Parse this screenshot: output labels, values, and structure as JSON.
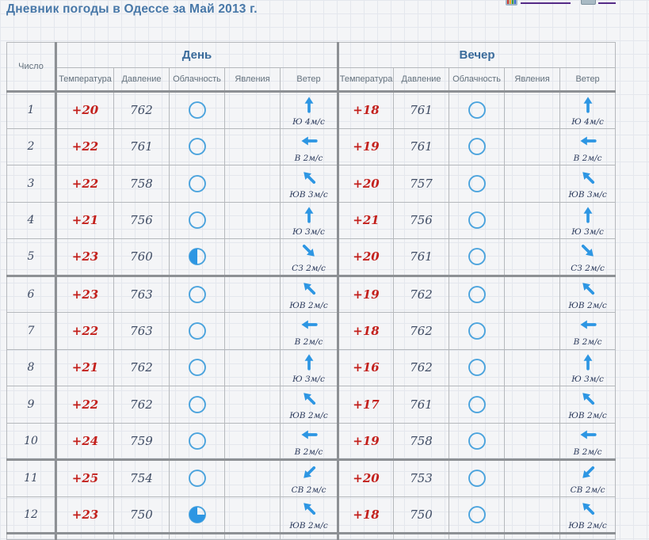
{
  "page": {
    "title": "Дневник погоды в Одессе за Май 2013 г."
  },
  "toolbar": {
    "icons": [
      "chart-icon",
      "print-icon"
    ]
  },
  "colors": {
    "title_blue": "#4878a8",
    "temperature_red": "#c3201c",
    "value_ink": "#3e4b63",
    "arrow_blue": "#2d96e3",
    "cloud_outline_blue": "#4aa3dd",
    "link_underline_purple": "#552a86"
  },
  "table": {
    "date_header": "Число",
    "groups": [
      "День",
      "Вечер"
    ],
    "columns": [
      "Температура",
      "Давление",
      "Облачность",
      "Явления",
      "Ветер"
    ],
    "rows": [
      {
        "date": "1",
        "day": {
          "temp": "+20",
          "pressure": "762",
          "cloud": "clear",
          "phenomena": "",
          "wind": {
            "label": "Ю 4м/с",
            "dir": "up"
          }
        },
        "evening": {
          "temp": "+18",
          "pressure": "761",
          "cloud": "clear",
          "phenomena": "",
          "wind": {
            "label": "Ю 4м/с",
            "dir": "up"
          }
        }
      },
      {
        "date": "2",
        "day": {
          "temp": "+22",
          "pressure": "761",
          "cloud": "clear",
          "phenomena": "",
          "wind": {
            "label": "В 2м/с",
            "dir": "left"
          }
        },
        "evening": {
          "temp": "+19",
          "pressure": "761",
          "cloud": "clear",
          "phenomena": "",
          "wind": {
            "label": "В 2м/с",
            "dir": "left"
          }
        }
      },
      {
        "date": "3",
        "day": {
          "temp": "+22",
          "pressure": "758",
          "cloud": "clear",
          "phenomena": "",
          "wind": {
            "label": "ЮВ 3м/с",
            "dir": "up-left"
          }
        },
        "evening": {
          "temp": "+20",
          "pressure": "757",
          "cloud": "clear",
          "phenomena": "",
          "wind": {
            "label": "ЮВ 3м/с",
            "dir": "up-left"
          }
        }
      },
      {
        "date": "4",
        "day": {
          "temp": "+21",
          "pressure": "756",
          "cloud": "clear",
          "phenomena": "",
          "wind": {
            "label": "Ю 3м/с",
            "dir": "up"
          }
        },
        "evening": {
          "temp": "+21",
          "pressure": "756",
          "cloud": "clear",
          "phenomena": "",
          "wind": {
            "label": "Ю 3м/с",
            "dir": "up"
          }
        }
      },
      {
        "date": "5",
        "day": {
          "temp": "+23",
          "pressure": "760",
          "cloud": "half",
          "phenomena": "",
          "wind": {
            "label": "СЗ 2м/с",
            "dir": "down-right"
          }
        },
        "evening": {
          "temp": "+20",
          "pressure": "761",
          "cloud": "clear",
          "phenomena": "",
          "wind": {
            "label": "СЗ 2м/с",
            "dir": "down-right"
          }
        }
      },
      {
        "date": "6",
        "day": {
          "temp": "+23",
          "pressure": "763",
          "cloud": "clear",
          "phenomena": "",
          "wind": {
            "label": "ЮВ 2м/с",
            "dir": "up-left"
          }
        },
        "evening": {
          "temp": "+19",
          "pressure": "762",
          "cloud": "clear",
          "phenomena": "",
          "wind": {
            "label": "ЮВ 2м/с",
            "dir": "up-left"
          }
        }
      },
      {
        "date": "7",
        "day": {
          "temp": "+22",
          "pressure": "763",
          "cloud": "clear",
          "phenomena": "",
          "wind": {
            "label": "В 2м/с",
            "dir": "left"
          }
        },
        "evening": {
          "temp": "+18",
          "pressure": "762",
          "cloud": "clear",
          "phenomena": "",
          "wind": {
            "label": "В 2м/с",
            "dir": "left"
          }
        }
      },
      {
        "date": "8",
        "day": {
          "temp": "+21",
          "pressure": "762",
          "cloud": "clear",
          "phenomena": "",
          "wind": {
            "label": "Ю 3м/с",
            "dir": "up"
          }
        },
        "evening": {
          "temp": "+16",
          "pressure": "762",
          "cloud": "clear",
          "phenomena": "",
          "wind": {
            "label": "Ю 3м/с",
            "dir": "up"
          }
        }
      },
      {
        "date": "9",
        "day": {
          "temp": "+22",
          "pressure": "762",
          "cloud": "clear",
          "phenomena": "",
          "wind": {
            "label": "ЮВ 2м/с",
            "dir": "up-left"
          }
        },
        "evening": {
          "temp": "+17",
          "pressure": "761",
          "cloud": "clear",
          "phenomena": "",
          "wind": {
            "label": "ЮВ 2м/с",
            "dir": "up-left"
          }
        }
      },
      {
        "date": "10",
        "day": {
          "temp": "+24",
          "pressure": "759",
          "cloud": "clear",
          "phenomena": "",
          "wind": {
            "label": "В 2м/с",
            "dir": "left"
          }
        },
        "evening": {
          "temp": "+19",
          "pressure": "758",
          "cloud": "clear",
          "phenomena": "",
          "wind": {
            "label": "В 2м/с",
            "dir": "left"
          }
        }
      },
      {
        "date": "11",
        "day": {
          "temp": "+25",
          "pressure": "754",
          "cloud": "clear",
          "phenomena": "",
          "wind": {
            "label": "СВ 2м/с",
            "dir": "down-left"
          }
        },
        "evening": {
          "temp": "+20",
          "pressure": "753",
          "cloud": "clear",
          "phenomena": "",
          "wind": {
            "label": "СВ 2м/с",
            "dir": "down-left"
          }
        }
      },
      {
        "date": "12",
        "day": {
          "temp": "+23",
          "pressure": "750",
          "cloud": "three-quarter",
          "phenomena": "",
          "wind": {
            "label": "ЮВ 2м/с",
            "dir": "up-left"
          }
        },
        "evening": {
          "temp": "+18",
          "pressure": "750",
          "cloud": "clear",
          "phenomena": "",
          "wind": {
            "label": "ЮВ 2м/с",
            "dir": "up-left"
          }
        }
      }
    ]
  }
}
